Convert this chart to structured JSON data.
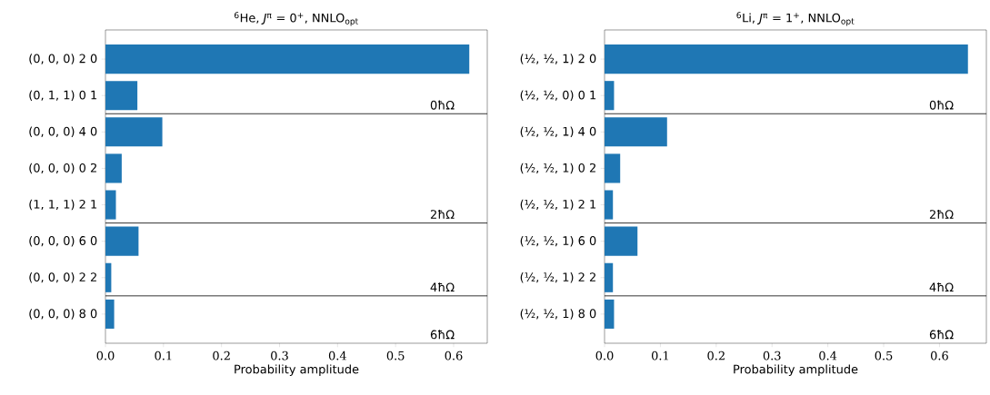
{
  "chart_data": [
    {
      "type": "bar",
      "orientation": "horizontal",
      "title": "$^{6}$He, *J*$^{π}$ = 0$^{+}$, NNLO$_{opt}$",
      "xlabel": "Probability amplitude",
      "categories": [
        "(0, 0, 0) 2 0",
        "(0, 1, 1) 0 1",
        "(0, 0, 0) 4 0",
        "(0, 0, 0) 0 2",
        "(1, 1, 1) 2 1",
        "(0, 0, 0) 6 0",
        "(0, 0, 0) 2 2",
        "(0, 0, 0) 8 0"
      ],
      "values": [
        0.627,
        0.055,
        0.098,
        0.028,
        0.018,
        0.057,
        0.01,
        0.015
      ],
      "color": "#1f77b4",
      "xlim": [
        0,
        0.658
      ],
      "xticks": [
        {
          "value": 0,
          "label": "0.0"
        },
        0.1,
        0.2,
        0.3,
        0.4,
        0.5,
        0.6
      ],
      "annotations": [
        "0ħΩ",
        "2ħΩ",
        "4ħΩ",
        "6ħΩ"
      ],
      "grid": false
    },
    {
      "type": "bar",
      "orientation": "horizontal",
      "title": "$^{6}$Li, *J*$^{π}$ = 1$^{+}$, NNLO$_{opt}$",
      "xlabel": "Probability amplitude",
      "categories": [
        "(½, ½, 1) 2 0",
        "(½, ½, 0) 0 1",
        "(½, ½, 1) 4 0",
        "(½, ½, 1) 0 2",
        "(½, ½, 1) 2 1",
        "(½, ½, 1) 6 0",
        "(½, ½, 1) 2 2",
        "(½, ½, 1) 8 0"
      ],
      "values": [
        0.651,
        0.017,
        0.112,
        0.028,
        0.015,
        0.059,
        0.015,
        0.017
      ],
      "color": "#1f77b4",
      "xlim": [
        0,
        0.684
      ],
      "xticks": [
        {
          "value": 0,
          "label": "0.0"
        },
        0.1,
        0.2,
        0.3,
        0.4,
        0.5,
        0.6
      ],
      "annotations": [
        "0ħΩ",
        "2ħΩ",
        "4ħΩ",
        "6ħΩ"
      ],
      "grid": false
    }
  ]
}
